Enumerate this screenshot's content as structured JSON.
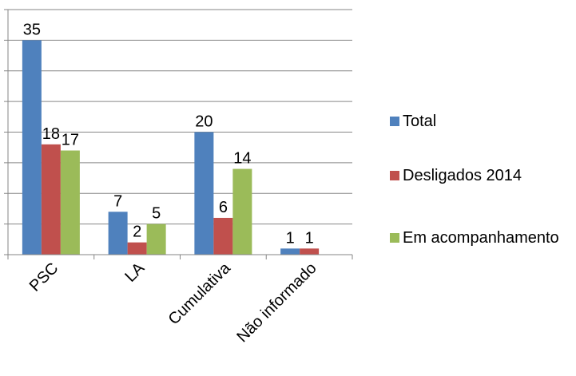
{
  "chart_data": {
    "type": "bar",
    "categories": [
      "PSC",
      "LA",
      "Cumulativa",
      "Não informado"
    ],
    "series": [
      {
        "name": "Total",
        "values": [
          35,
          7,
          20,
          1
        ],
        "color": "#4F81BD"
      },
      {
        "name": "Desligados 2014",
        "values": [
          18,
          2,
          6,
          1
        ],
        "color": "#C0504D"
      },
      {
        "name": "Em acompanhamento",
        "values": [
          17,
          5,
          14,
          null
        ],
        "color": "#9BBB59"
      }
    ],
    "ylim": [
      0,
      40
    ],
    "ytick_step": 5,
    "grid": true,
    "legend": "right",
    "title": "",
    "xlabel": "",
    "ylabel": ""
  }
}
